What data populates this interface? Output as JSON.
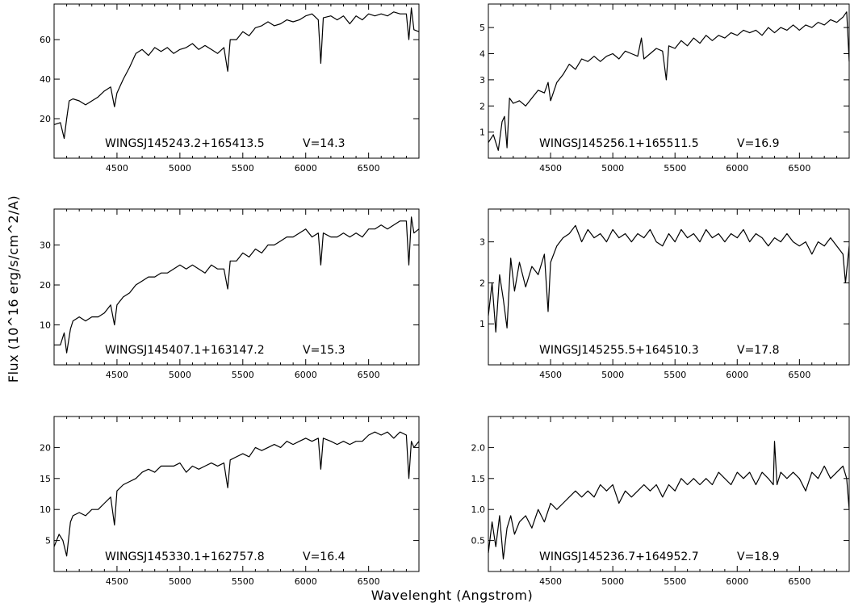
{
  "figure": {
    "xlabel": "Wavelenght (Angstrom)",
    "ylabel": "Flux (10^16 erg/s/cm^2/A)"
  },
  "chart_data": [
    {
      "type": "line",
      "label": "WINGSJ145243.2+165413.5",
      "vmag": "V=14.3",
      "xlim": [
        4000,
        6900
      ],
      "ylim": [
        0,
        78
      ],
      "xticks": [
        4500,
        5000,
        5500,
        6000,
        6500
      ],
      "yticks": [
        20,
        40,
        60
      ],
      "series": [
        {
          "x": [
            4000,
            4050,
            4080,
            4100,
            4120,
            4150,
            4200,
            4250,
            4300,
            4350,
            4400,
            4450,
            4480,
            4500,
            4550,
            4600,
            4650,
            4700,
            4750,
            4800,
            4850,
            4900,
            4950,
            5000,
            5050,
            5100,
            5150,
            5200,
            5250,
            5300,
            5350,
            5380,
            5400,
            5450,
            5500,
            5550,
            5600,
            5650,
            5700,
            5750,
            5800,
            5850,
            5900,
            5950,
            6000,
            6050,
            6100,
            6120,
            6140,
            6200,
            6250,
            6300,
            6350,
            6400,
            6450,
            6500,
            6550,
            6600,
            6650,
            6700,
            6750,
            6800,
            6820,
            6840,
            6860,
            6900
          ],
          "y": [
            17,
            18,
            10,
            20,
            29,
            30,
            29,
            27,
            29,
            31,
            34,
            36,
            26,
            33,
            40,
            46,
            53,
            55,
            52,
            56,
            54,
            56,
            53,
            55,
            56,
            58,
            55,
            57,
            55,
            53,
            56,
            44,
            60,
            60,
            64,
            62,
            66,
            67,
            69,
            67,
            68,
            70,
            69,
            70,
            72,
            73,
            70,
            48,
            71,
            72,
            70,
            72,
            68,
            72,
            70,
            73,
            72,
            73,
            72,
            74,
            73,
            73,
            60,
            76,
            65,
            64
          ]
        }
      ]
    },
    {
      "type": "line",
      "label": "WINGSJ145256.1+165511.5",
      "vmag": "V=16.9",
      "xlim": [
        4000,
        6900
      ],
      "ylim": [
        0,
        5.9
      ],
      "xticks": [
        4500,
        5000,
        5500,
        6000,
        6500
      ],
      "yticks": [
        1,
        2,
        3,
        4,
        5
      ],
      "series": [
        {
          "x": [
            4000,
            4040,
            4080,
            4110,
            4130,
            4150,
            4170,
            4200,
            4250,
            4300,
            4350,
            4400,
            4450,
            4480,
            4500,
            4550,
            4600,
            4650,
            4700,
            4750,
            4800,
            4850,
            4900,
            4950,
            5000,
            5050,
            5100,
            5150,
            5200,
            5230,
            5250,
            5300,
            5350,
            5400,
            5430,
            5450,
            5500,
            5550,
            5600,
            5650,
            5700,
            5750,
            5800,
            5850,
            5900,
            5950,
            6000,
            6050,
            6100,
            6150,
            6200,
            6250,
            6300,
            6350,
            6400,
            6450,
            6500,
            6550,
            6600,
            6650,
            6700,
            6750,
            6800,
            6850,
            6880,
            6900
          ],
          "y": [
            0.6,
            0.9,
            0.3,
            1.4,
            1.6,
            0.4,
            2.3,
            2.1,
            2.2,
            2.0,
            2.3,
            2.6,
            2.5,
            2.9,
            2.2,
            2.9,
            3.2,
            3.6,
            3.4,
            3.8,
            3.7,
            3.9,
            3.7,
            3.9,
            4.0,
            3.8,
            4.1,
            4.0,
            3.9,
            4.6,
            3.8,
            4.0,
            4.2,
            4.1,
            3.0,
            4.3,
            4.2,
            4.5,
            4.3,
            4.6,
            4.4,
            4.7,
            4.5,
            4.7,
            4.6,
            4.8,
            4.7,
            4.9,
            4.8,
            4.9,
            4.7,
            5.0,
            4.8,
            5.0,
            4.9,
            5.1,
            4.9,
            5.1,
            5.0,
            5.2,
            5.1,
            5.3,
            5.2,
            5.4,
            5.6,
            3.7
          ]
        }
      ]
    },
    {
      "type": "line",
      "label": "WINGSJ145407.1+163147.2",
      "vmag": "V=15.3",
      "xlim": [
        4000,
        6900
      ],
      "ylim": [
        0,
        39
      ],
      "xticks": [
        4500,
        5000,
        5500,
        6000,
        6500
      ],
      "yticks": [
        10,
        20,
        30
      ],
      "series": [
        {
          "x": [
            4000,
            4050,
            4080,
            4100,
            4130,
            4150,
            4200,
            4250,
            4300,
            4350,
            4400,
            4450,
            4480,
            4500,
            4550,
            4600,
            4650,
            4700,
            4750,
            4800,
            4850,
            4900,
            4950,
            5000,
            5050,
            5100,
            5150,
            5200,
            5250,
            5300,
            5350,
            5380,
            5400,
            5450,
            5500,
            5550,
            5600,
            5650,
            5700,
            5750,
            5800,
            5850,
            5900,
            5950,
            6000,
            6050,
            6100,
            6120,
            6140,
            6200,
            6250,
            6300,
            6350,
            6400,
            6450,
            6500,
            6550,
            6600,
            6650,
            6700,
            6750,
            6800,
            6820,
            6840,
            6860,
            6900
          ],
          "y": [
            5,
            5,
            8,
            3,
            9,
            11,
            12,
            11,
            12,
            12,
            13,
            15,
            10,
            15,
            17,
            18,
            20,
            21,
            22,
            22,
            23,
            23,
            24,
            25,
            24,
            25,
            24,
            23,
            25,
            24,
            24,
            19,
            26,
            26,
            28,
            27,
            29,
            28,
            30,
            30,
            31,
            32,
            32,
            33,
            34,
            32,
            33,
            25,
            33,
            32,
            32,
            33,
            32,
            33,
            32,
            34,
            34,
            35,
            34,
            35,
            36,
            36,
            25,
            37,
            33,
            34
          ]
        }
      ]
    },
    {
      "type": "line",
      "label": "WINGSJ145255.5+164510.3",
      "vmag": "V=17.8",
      "xlim": [
        4000,
        6900
      ],
      "ylim": [
        0,
        3.8
      ],
      "xticks": [
        4500,
        5000,
        5500,
        6000,
        6500
      ],
      "yticks": [
        1,
        2,
        3
      ],
      "series": [
        {
          "x": [
            4000,
            4030,
            4060,
            4090,
            4120,
            4150,
            4180,
            4210,
            4250,
            4300,
            4350,
            4400,
            4450,
            4480,
            4500,
            4550,
            4600,
            4650,
            4700,
            4750,
            4800,
            4850,
            4900,
            4950,
            5000,
            5050,
            5100,
            5150,
            5200,
            5250,
            5300,
            5350,
            5400,
            5450,
            5500,
            5550,
            5600,
            5650,
            5700,
            5750,
            5800,
            5850,
            5900,
            5950,
            6000,
            6050,
            6100,
            6150,
            6200,
            6250,
            6300,
            6350,
            6400,
            6450,
            6500,
            6550,
            6600,
            6650,
            6700,
            6750,
            6800,
            6850,
            6870,
            6900
          ],
          "y": [
            1.2,
            2.0,
            0.8,
            2.2,
            1.6,
            0.9,
            2.6,
            1.8,
            2.5,
            1.9,
            2.4,
            2.2,
            2.7,
            1.3,
            2.5,
            2.9,
            3.1,
            3.2,
            3.4,
            3.0,
            3.3,
            3.1,
            3.2,
            3.0,
            3.3,
            3.1,
            3.2,
            3.0,
            3.2,
            3.1,
            3.3,
            3.0,
            2.9,
            3.2,
            3.0,
            3.3,
            3.1,
            3.2,
            3.0,
            3.3,
            3.1,
            3.2,
            3.0,
            3.2,
            3.1,
            3.3,
            3.0,
            3.2,
            3.1,
            2.9,
            3.1,
            3.0,
            3.2,
            3.0,
            2.9,
            3.0,
            2.7,
            3.0,
            2.9,
            3.1,
            2.9,
            2.7,
            2.0,
            2.9
          ]
        }
      ]
    },
    {
      "type": "line",
      "label": "WINGSJ145330.1+162757.8",
      "vmag": "V=16.4",
      "xlim": [
        4000,
        6900
      ],
      "ylim": [
        0,
        25
      ],
      "xticks": [
        4500,
        5000,
        5500,
        6000,
        6500
      ],
      "yticks": [
        5,
        10,
        15,
        20
      ],
      "series": [
        {
          "x": [
            4000,
            4040,
            4070,
            4100,
            4130,
            4150,
            4200,
            4250,
            4300,
            4350,
            4400,
            4450,
            4480,
            4500,
            4550,
            4600,
            4650,
            4700,
            4750,
            4800,
            4850,
            4900,
            4950,
            5000,
            5050,
            5100,
            5150,
            5200,
            5250,
            5300,
            5350,
            5380,
            5400,
            5450,
            5500,
            5550,
            5600,
            5650,
            5700,
            5750,
            5800,
            5850,
            5900,
            5950,
            6000,
            6050,
            6100,
            6120,
            6140,
            6200,
            6250,
            6300,
            6350,
            6400,
            6450,
            6500,
            6550,
            6600,
            6650,
            6700,
            6750,
            6800,
            6820,
            6840,
            6860,
            6900
          ],
          "y": [
            4,
            6,
            5,
            2.5,
            8,
            9,
            9.5,
            9,
            10,
            10,
            11,
            12,
            7.5,
            13,
            14,
            14.5,
            15,
            16,
            16.5,
            16,
            17,
            17,
            17,
            17.5,
            16,
            17,
            16.5,
            17,
            17.5,
            17,
            17.5,
            13.5,
            18,
            18.5,
            19,
            18.5,
            20,
            19.5,
            20,
            20.5,
            20,
            21,
            20.5,
            21,
            21.5,
            21,
            21.5,
            16.5,
            21.5,
            21,
            20.5,
            21,
            20.5,
            21,
            21,
            22,
            22.5,
            22,
            22.5,
            21.5,
            22.5,
            22,
            15,
            21,
            20,
            21
          ]
        }
      ]
    },
    {
      "type": "line",
      "label": "WINGSJ145236.7+164952.7",
      "vmag": "V=18.9",
      "xlim": [
        4000,
        6900
      ],
      "ylim": [
        0,
        2.5
      ],
      "xticks": [
        4500,
        5000,
        5500,
        6000,
        6500
      ],
      "yticks": [
        0.5,
        1.0,
        1.5,
        2.0
      ],
      "series": [
        {
          "x": [
            4000,
            4030,
            4060,
            4090,
            4120,
            4150,
            4180,
            4210,
            4250,
            4300,
            4350,
            4400,
            4450,
            4500,
            4550,
            4600,
            4650,
            4700,
            4750,
            4800,
            4850,
            4900,
            4950,
            5000,
            5050,
            5100,
            5150,
            5200,
            5250,
            5300,
            5350,
            5400,
            5450,
            5500,
            5550,
            5600,
            5650,
            5700,
            5750,
            5800,
            5850,
            5900,
            5950,
            6000,
            6050,
            6100,
            6150,
            6200,
            6250,
            6290,
            6300,
            6320,
            6350,
            6400,
            6450,
            6500,
            6550,
            6600,
            6650,
            6700,
            6750,
            6800,
            6850,
            6880,
            6900
          ],
          "y": [
            0.3,
            0.8,
            0.4,
            0.9,
            0.2,
            0.7,
            0.9,
            0.6,
            0.8,
            0.9,
            0.7,
            1.0,
            0.8,
            1.1,
            1.0,
            1.1,
            1.2,
            1.3,
            1.2,
            1.3,
            1.2,
            1.4,
            1.3,
            1.4,
            1.1,
            1.3,
            1.2,
            1.3,
            1.4,
            1.3,
            1.4,
            1.2,
            1.4,
            1.3,
            1.5,
            1.4,
            1.5,
            1.4,
            1.5,
            1.4,
            1.6,
            1.5,
            1.4,
            1.6,
            1.5,
            1.6,
            1.4,
            1.6,
            1.5,
            1.4,
            2.1,
            1.4,
            1.6,
            1.5,
            1.6,
            1.5,
            1.3,
            1.6,
            1.5,
            1.7,
            1.5,
            1.6,
            1.7,
            1.5,
            1.0
          ]
        }
      ]
    }
  ]
}
